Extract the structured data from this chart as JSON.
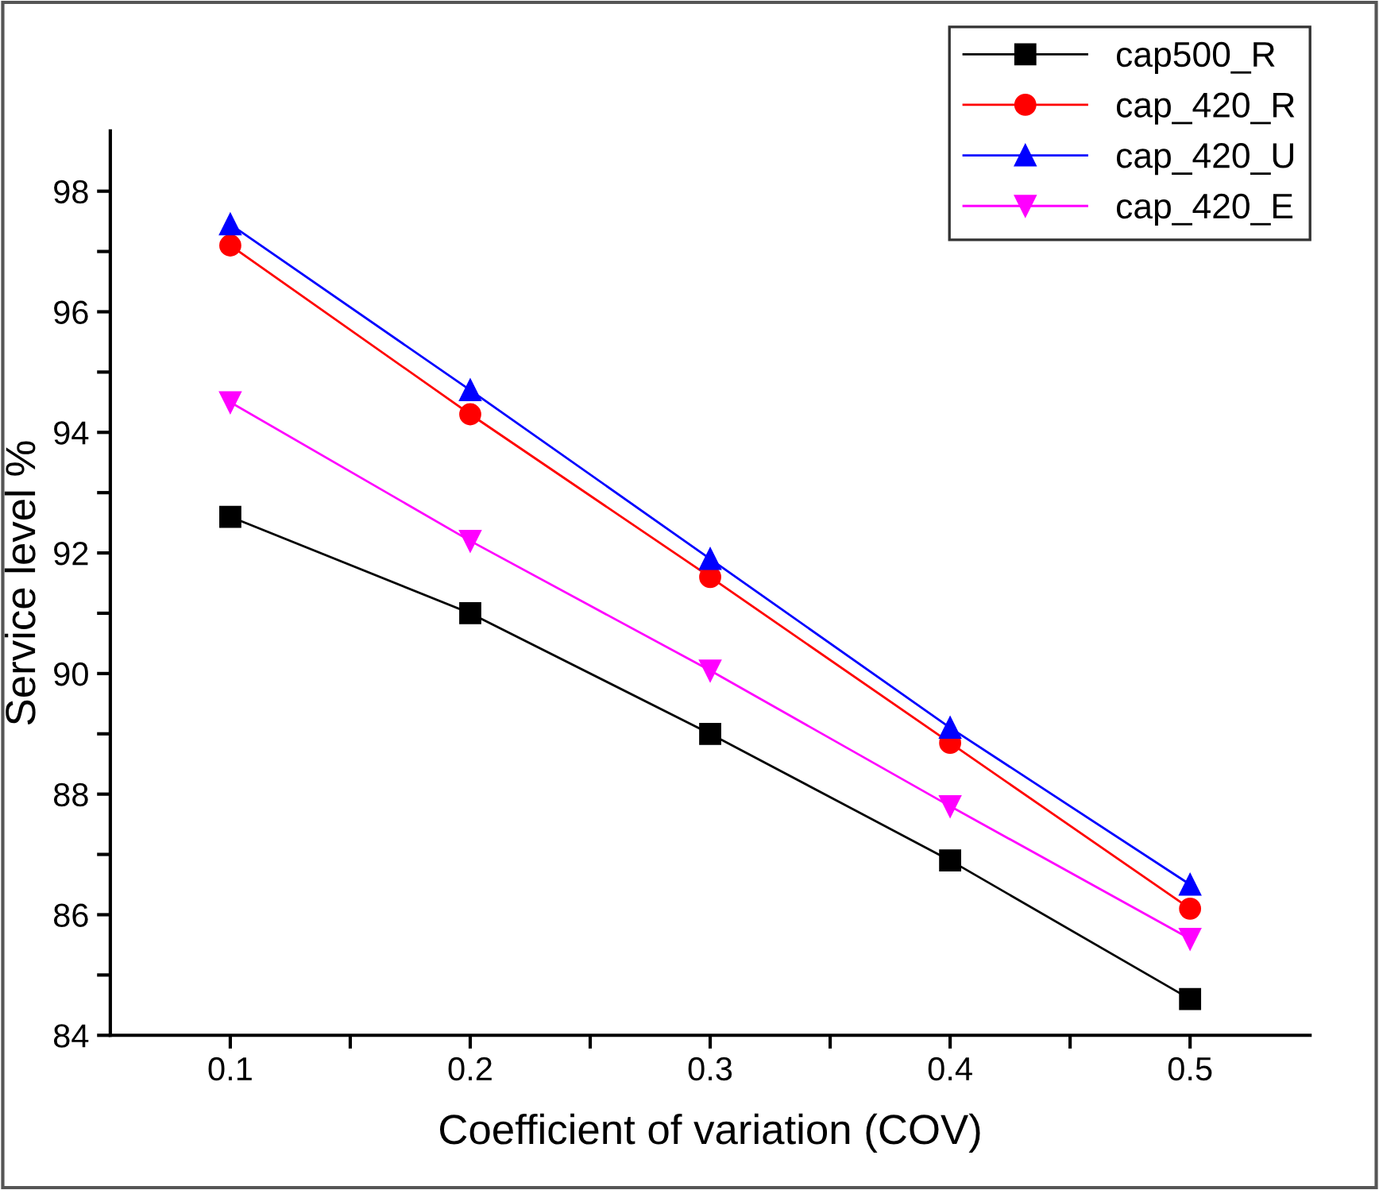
{
  "chart_data": {
    "type": "line",
    "xlabel": "Coefficient of variation (COV)",
    "ylabel": "Service level %",
    "x": [
      0.1,
      0.2,
      0.3,
      0.4,
      0.5
    ],
    "series": [
      {
        "name": "cap500_R",
        "color": "#000000",
        "marker": "square",
        "values": [
          92.6,
          91.0,
          89.0,
          86.9,
          84.6
        ]
      },
      {
        "name": "cap_420_R",
        "color": "#ff0000",
        "marker": "circle",
        "values": [
          97.1,
          94.3,
          91.6,
          88.85,
          86.1
        ]
      },
      {
        "name": "cap_420_U",
        "color": "#0000ff",
        "marker": "triangle",
        "values": [
          97.45,
          94.7,
          91.9,
          89.1,
          86.5
        ]
      },
      {
        "name": "cap_420_E",
        "color": "#ff00ff",
        "marker": "triangle_down",
        "values": [
          94.5,
          92.2,
          90.05,
          87.8,
          85.6
        ]
      }
    ],
    "xlim": [
      0.05,
      0.55
    ],
    "ylim": [
      84,
      99
    ],
    "xticks": [
      0.1,
      {
        "value": 0.15,
        "label": null
      },
      0.2,
      {
        "value": 0.25,
        "label": null
      },
      0.3,
      {
        "value": 0.35,
        "label": null
      },
      0.4,
      {
        "value": 0.45,
        "label": null
      },
      0.5
    ],
    "yticks": [
      84,
      {
        "value": 85,
        "label": null
      },
      86,
      {
        "value": 87,
        "label": null
      },
      88,
      {
        "value": 89,
        "label": null
      },
      90,
      {
        "value": 91,
        "label": null
      },
      92,
      {
        "value": 93,
        "label": null
      },
      94,
      {
        "value": 95,
        "label": null
      },
      96,
      {
        "value": 97,
        "label": null
      },
      98
    ],
    "line_style": "solid",
    "grid": false,
    "legend": "top right"
  }
}
